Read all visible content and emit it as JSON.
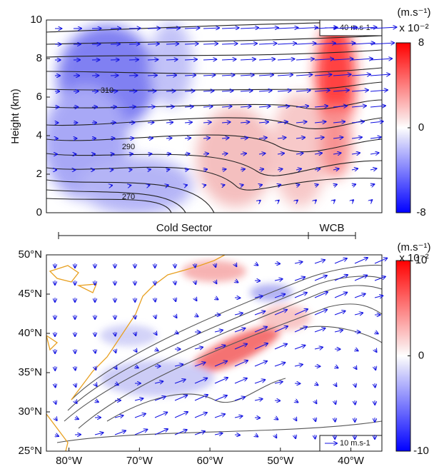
{
  "chart_data": [
    {
      "type": "section",
      "ylabel": "Height (km)",
      "ylim": [
        0,
        10
      ],
      "yticks": [
        0,
        2,
        4,
        6,
        8,
        10
      ],
      "colorbar_unit": "(m.s⁻¹)",
      "colorbar_scale": "x 10⁻²",
      "colorbar_lim": [
        -8,
        8
      ],
      "colorbar_ticks": [
        -8,
        0,
        8
      ],
      "contour_labels": [
        "310",
        "290",
        "270"
      ],
      "reference_vector": "40 m.s-1",
      "sectors": [
        "Cold Sector",
        "WCB"
      ]
    },
    {
      "type": "map",
      "xlim": [
        -83.2,
        -35.6
      ],
      "ylim": [
        25,
        50
      ],
      "xticks": [
        {
          "value": -80,
          "label": "80°W"
        },
        {
          "value": -70,
          "label": "70°W"
        },
        {
          "value": -60,
          "label": "60°W"
        },
        {
          "value": -50,
          "label": "50°W"
        },
        {
          "value": -40,
          "label": "40°W"
        }
      ],
      "yticks": [
        {
          "value": 25,
          "label": "25°N"
        },
        {
          "value": 30,
          "label": "30°N"
        },
        {
          "value": 35,
          "label": "35°N"
        },
        {
          "value": 40,
          "label": "40°N"
        },
        {
          "value": 45,
          "label": "45°N"
        },
        {
          "value": 50,
          "label": "50°N"
        }
      ],
      "colorbar_unit": "(m.s⁻¹)",
      "colorbar_scale": "x 10⁻²",
      "colorbar_lim": [
        -10,
        10
      ],
      "colorbar_ticks": [
        -10,
        0,
        10
      ],
      "reference_vector": "10 m.s-1"
    }
  ]
}
